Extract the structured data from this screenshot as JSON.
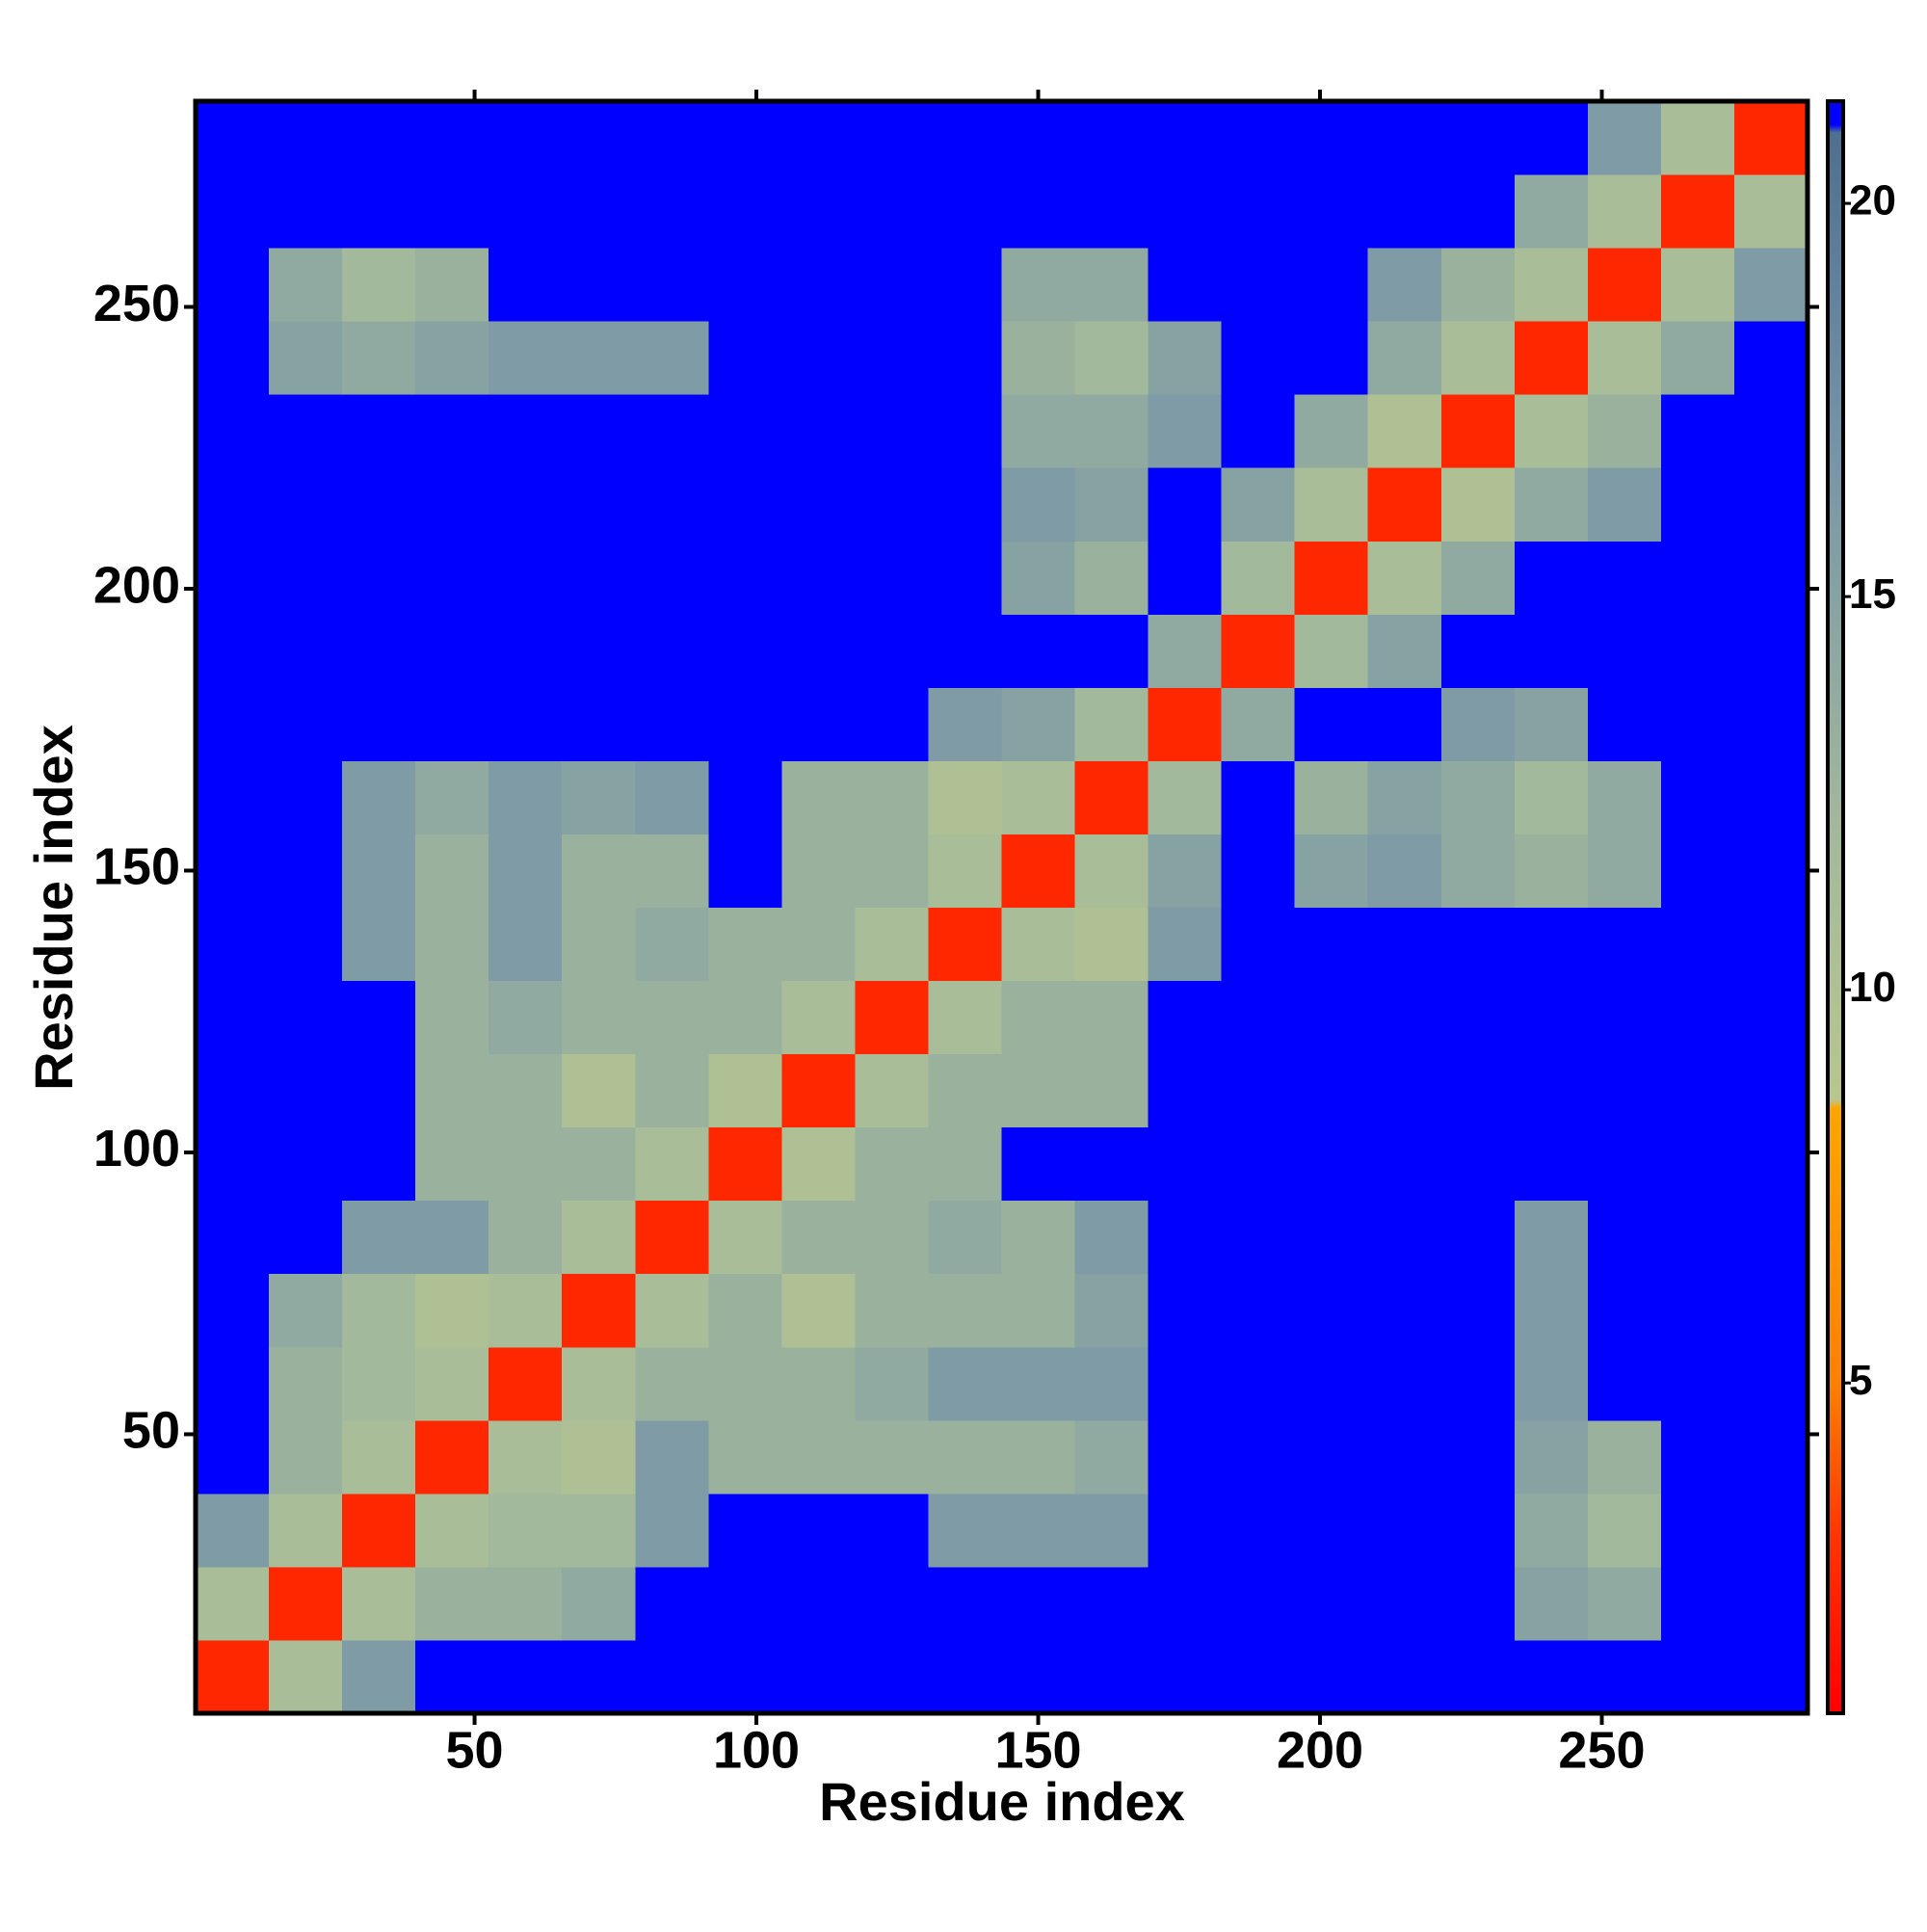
{
  "chart_data": {
    "type": "heatmap",
    "xlabel": "Residue index",
    "ylabel": "Residue index",
    "x": [
      7,
      20,
      33,
      46,
      59,
      72,
      85,
      98,
      111,
      124,
      137,
      150,
      163,
      176,
      189,
      202,
      215,
      228,
      241,
      254,
      267,
      280
    ],
    "y": [
      7,
      20,
      33,
      46,
      59,
      72,
      85,
      98,
      111,
      124,
      137,
      150,
      163,
      176,
      189,
      202,
      215,
      228,
      241,
      254,
      267,
      280
    ],
    "z": [
      [
        2.5,
        11,
        16,
        21,
        21,
        21,
        21,
        21,
        21,
        21,
        21,
        21,
        21,
        21,
        21,
        21,
        21,
        21,
        21,
        21,
        21,
        21
      ],
      [
        11,
        2.5,
        11,
        13,
        13,
        14,
        21,
        21,
        21,
        21,
        21,
        21,
        21,
        21,
        21,
        21,
        21,
        21,
        15,
        14,
        21,
        21
      ],
      [
        16,
        11,
        2.5,
        11,
        12,
        12,
        16,
        21,
        21,
        21,
        16,
        16,
        16,
        21,
        21,
        21,
        21,
        21,
        14,
        12,
        21,
        21
      ],
      [
        21,
        13,
        11,
        2.5,
        11,
        10,
        16,
        13,
        13,
        13,
        13,
        13,
        14,
        21,
        21,
        21,
        21,
        21,
        15,
        13,
        21,
        21
      ],
      [
        21,
        13,
        12,
        11,
        2.5,
        11,
        13,
        13,
        13,
        14,
        16,
        16,
        16,
        21,
        21,
        21,
        21,
        21,
        16,
        21,
        21,
        21
      ],
      [
        21,
        14,
        12,
        10,
        11,
        2.5,
        11,
        13,
        10,
        13,
        13,
        13,
        15,
        21,
        21,
        21,
        21,
        21,
        16,
        21,
        21,
        21
      ],
      [
        21,
        21,
        16,
        16,
        13,
        11,
        2.5,
        11,
        13,
        13,
        14,
        13,
        16,
        21,
        21,
        21,
        21,
        21,
        16,
        21,
        21,
        21
      ],
      [
        21,
        21,
        21,
        13,
        13,
        13,
        11,
        2.5,
        10,
        13,
        13,
        21,
        21,
        21,
        21,
        21,
        21,
        21,
        21,
        21,
        21,
        21
      ],
      [
        21,
        21,
        21,
        13,
        13,
        10,
        13,
        10,
        2.5,
        11,
        13,
        13,
        13,
        21,
        21,
        21,
        21,
        21,
        21,
        21,
        21,
        21
      ],
      [
        21,
        21,
        21,
        13,
        14,
        13,
        13,
        13,
        11,
        2.5,
        11,
        13,
        13,
        21,
        21,
        21,
        21,
        21,
        21,
        21,
        21,
        21
      ],
      [
        21,
        21,
        16,
        13,
        16,
        13,
        14,
        13,
        13,
        11,
        2.5,
        11,
        10,
        16,
        21,
        21,
        21,
        21,
        21,
        21,
        21,
        21
      ],
      [
        21,
        21,
        16,
        13,
        16,
        13,
        13,
        21,
        13,
        13,
        11,
        2.5,
        11,
        15,
        21,
        15,
        16,
        14,
        13,
        14,
        21,
        21
      ],
      [
        21,
        21,
        16,
        14,
        16,
        15,
        16,
        21,
        13,
        13,
        10,
        11,
        2.5,
        12,
        21,
        13,
        15,
        14,
        12,
        14,
        21,
        21
      ],
      [
        21,
        21,
        21,
        21,
        21,
        21,
        21,
        21,
        21,
        21,
        16,
        15,
        12,
        2.5,
        14,
        21,
        21,
        16,
        15,
        21,
        21,
        21
      ],
      [
        21,
        21,
        21,
        21,
        21,
        21,
        21,
        21,
        21,
        21,
        21,
        21,
        21,
        14,
        2.5,
        12,
        15,
        21,
        21,
        21,
        21,
        21
      ],
      [
        21,
        21,
        21,
        21,
        21,
        21,
        21,
        21,
        21,
        21,
        21,
        15,
        13,
        21,
        12,
        2.5,
        11,
        14,
        21,
        21,
        21,
        21
      ],
      [
        21,
        21,
        21,
        21,
        21,
        21,
        21,
        21,
        21,
        21,
        21,
        16,
        15,
        21,
        15,
        11,
        2.5,
        10,
        14,
        16,
        21,
        21
      ],
      [
        21,
        21,
        21,
        21,
        21,
        21,
        21,
        21,
        21,
        21,
        21,
        14,
        14,
        16,
        21,
        14,
        10,
        2.5,
        11,
        13,
        21,
        21
      ],
      [
        21,
        15,
        14,
        15,
        16,
        16,
        16,
        21,
        21,
        21,
        21,
        13,
        12,
        15,
        21,
        21,
        14,
        11,
        2.5,
        11,
        14,
        21
      ],
      [
        21,
        14,
        12,
        13,
        21,
        21,
        21,
        21,
        21,
        21,
        21,
        14,
        14,
        21,
        21,
        21,
        16,
        13,
        11,
        2.5,
        11,
        16
      ],
      [
        21,
        21,
        21,
        21,
        21,
        21,
        21,
        21,
        21,
        21,
        21,
        21,
        21,
        21,
        21,
        21,
        21,
        21,
        14,
        11,
        2.5,
        11
      ],
      [
        21,
        21,
        21,
        21,
        21,
        21,
        21,
        21,
        21,
        21,
        21,
        21,
        21,
        21,
        21,
        21,
        21,
        21,
        21,
        16,
        11,
        2.5
      ]
    ],
    "xlim": [
      0.5,
      286.5
    ],
    "ylim": [
      0.5,
      286.5
    ],
    "xticks": [
      50,
      100,
      150,
      200,
      250
    ],
    "yticks": [
      50,
      100,
      150,
      200,
      250
    ],
    "zlim": [
      0.8,
      21.3
    ],
    "zticks": [
      5,
      10,
      15,
      20
    ],
    "colorscale": [
      [
        0.8,
        "#ff0000"
      ],
      [
        3,
        "#ff3300"
      ],
      [
        5,
        "#ff8000"
      ],
      [
        8.5,
        "#ffa500"
      ],
      [
        8.6,
        "#b8c68e"
      ],
      [
        12,
        "#a3b99c"
      ],
      [
        17,
        "#7593a8"
      ],
      [
        20.9,
        "#4f6f90"
      ],
      [
        21,
        "#0000ff"
      ]
    ]
  }
}
